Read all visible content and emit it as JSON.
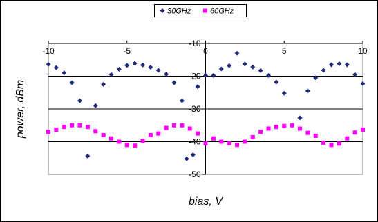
{
  "chart_data": {
    "type": "scatter",
    "xlabel": "bias, V",
    "ylabel": "power, dBm",
    "xlim": [
      -10,
      10
    ],
    "ylim": [
      -50,
      -10
    ],
    "xticks": [
      "-10",
      "-5",
      "0",
      "5",
      "10"
    ],
    "yticks": [
      "-10",
      "-20",
      "-30",
      "-40",
      "-50"
    ],
    "grid": "horizontal",
    "legend_position": "top-center",
    "series": [
      {
        "name": "30GHz",
        "color": "#1f2a78",
        "marker": "diamond",
        "points": [
          [
            -10,
            -16.4
          ],
          [
            -9.5,
            -17.4
          ],
          [
            -9,
            -19.0
          ],
          [
            -8.5,
            -22.0
          ],
          [
            -8,
            -27.5
          ],
          [
            -7.5,
            -44.4
          ],
          [
            -7,
            -29.0
          ],
          [
            -6.5,
            -22.5
          ],
          [
            -6,
            -19.5
          ],
          [
            -5.5,
            -17.9
          ],
          [
            -5,
            -16.7
          ],
          [
            -4.5,
            -16.1
          ],
          [
            -4,
            -16.6
          ],
          [
            -3.5,
            -17.3
          ],
          [
            -3,
            -18.2
          ],
          [
            -2.5,
            -19.4
          ],
          [
            -2,
            -22.0
          ],
          [
            -1.5,
            -27.5
          ],
          [
            -1.2,
            -45.2
          ],
          [
            -0.8,
            -44.0
          ],
          [
            -0.5,
            -23.2
          ],
          [
            0,
            -19.8
          ],
          [
            0.5,
            -19.8
          ],
          [
            1,
            -17.8
          ],
          [
            1.5,
            -16.8
          ],
          [
            2,
            -13.0
          ],
          [
            2.5,
            -16.3
          ],
          [
            3,
            -17.2
          ],
          [
            3.5,
            -18.3
          ],
          [
            4,
            -19.8
          ],
          [
            4.5,
            -21.8
          ],
          [
            5,
            -25.2
          ],
          [
            5.5,
            -35.0
          ],
          [
            6,
            -32.7
          ],
          [
            6.5,
            -24.5
          ],
          [
            7,
            -20.5
          ],
          [
            7.5,
            -18.2
          ],
          [
            8,
            -16.5
          ],
          [
            8.5,
            -16.2
          ],
          [
            9,
            -16.5
          ],
          [
            9.5,
            -19.5
          ],
          [
            10,
            -22.3
          ]
        ]
      },
      {
        "name": "60GHz",
        "color": "#ff00ff",
        "marker": "square",
        "points": [
          [
            -10,
            -37.0
          ],
          [
            -9.5,
            -36.3
          ],
          [
            -9,
            -35.5
          ],
          [
            -8.5,
            -35.0
          ],
          [
            -8,
            -35.0
          ],
          [
            -7.5,
            -35.5
          ],
          [
            -7,
            -36.8
          ],
          [
            -6.5,
            -38.0
          ],
          [
            -6,
            -39.0
          ],
          [
            -5.5,
            -40.0
          ],
          [
            -5,
            -41.0
          ],
          [
            -4.5,
            -41.2
          ],
          [
            -4,
            -39.8
          ],
          [
            -3.5,
            -38.0
          ],
          [
            -3,
            -37.5
          ],
          [
            -2.5,
            -35.8
          ],
          [
            -2,
            -35.0
          ],
          [
            -1.5,
            -35.0
          ],
          [
            -1,
            -36.0
          ],
          [
            -0.5,
            -37.5
          ],
          [
            0,
            -40.5
          ],
          [
            0.5,
            -39.0
          ],
          [
            1,
            -40.0
          ],
          [
            1.5,
            -40.5
          ],
          [
            2,
            -41.0
          ],
          [
            2.5,
            -40.0
          ],
          [
            3,
            -38.6
          ],
          [
            3.5,
            -37.0
          ],
          [
            4,
            -36.0
          ],
          [
            4.5,
            -35.5
          ],
          [
            5,
            -35.2
          ],
          [
            5.5,
            -35.0
          ],
          [
            6,
            -36.0
          ],
          [
            6.5,
            -37.3
          ],
          [
            7,
            -38.2
          ],
          [
            7.5,
            -40.3
          ],
          [
            8,
            -41.0
          ],
          [
            8.5,
            -40.6
          ],
          [
            9,
            -39.0
          ],
          [
            9.5,
            -37.2
          ],
          [
            10,
            -36.3
          ]
        ]
      }
    ]
  }
}
